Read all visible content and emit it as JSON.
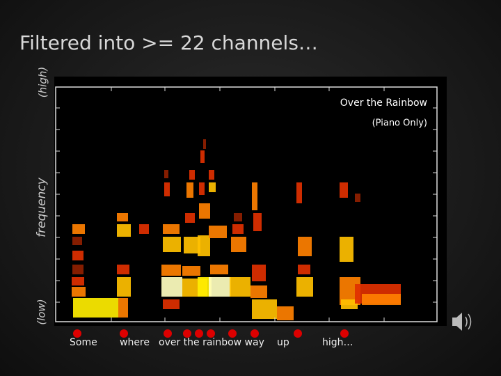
{
  "title": "Filtered into >= 22 channels…",
  "y_axis": {
    "high": "(high)",
    "label": "frequency",
    "low": "(low)"
  },
  "plot": {
    "caption": "Over the Rainbow",
    "subcaption": "(Piano Only)"
  },
  "words": [
    "Some",
    "where",
    "over the rainbow way",
    "up",
    "high…"
  ]
}
